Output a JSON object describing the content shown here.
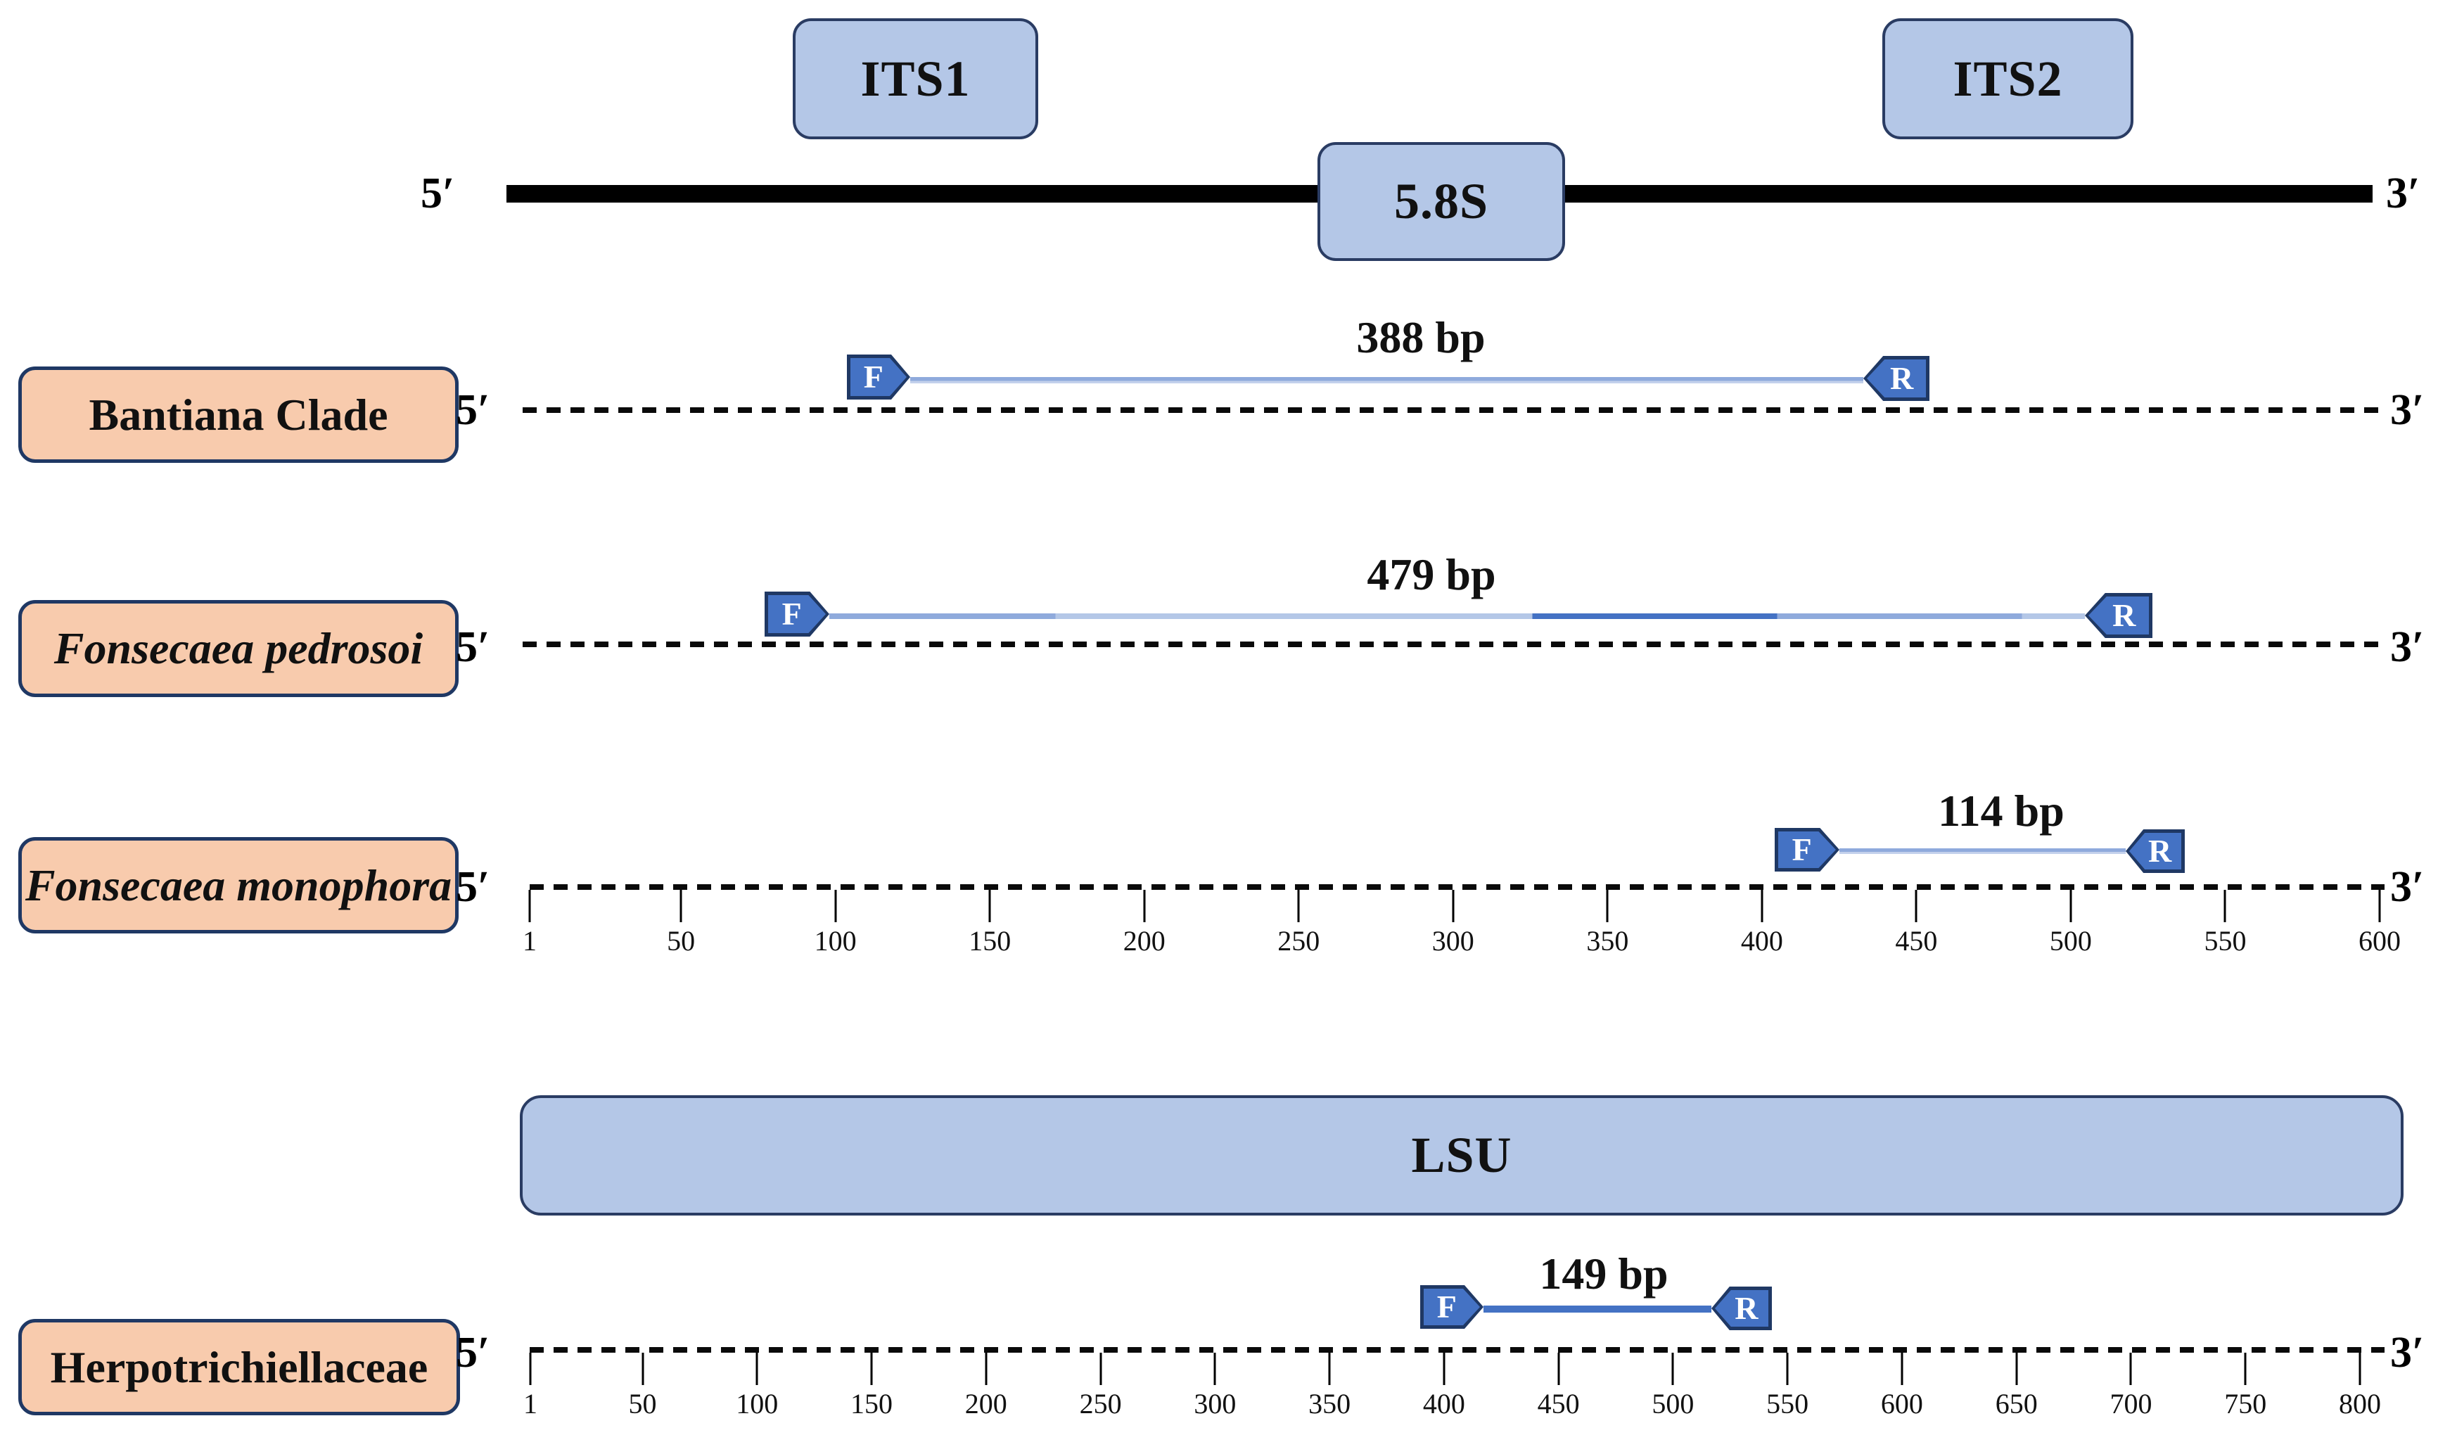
{
  "figure": {
    "title_region_map": {
      "five_prime": "5′",
      "three_prime": "3′",
      "its1_label": "ITS1",
      "s58_label": "5.8S",
      "its2_label": "ITS2"
    },
    "lsu_label": "LSU",
    "rows": [
      {
        "name": "Bantiana Clade",
        "italic": false,
        "five_prime": "5′",
        "three_prime": "3′",
        "amplicon_size": "388 bp",
        "forward_label": "F",
        "reverse_label": "R",
        "ruler": null
      },
      {
        "name": "Fonsecaea pedrosoi",
        "italic": true,
        "five_prime": "5′",
        "three_prime": "3′",
        "amplicon_size": "479 bp",
        "forward_label": "F",
        "reverse_label": "R",
        "ruler": null
      },
      {
        "name": "Fonsecaea monophora",
        "italic": true,
        "five_prime": "5′",
        "three_prime": "3′",
        "amplicon_size": "114 bp",
        "forward_label": "F",
        "reverse_label": "R",
        "ruler": {
          "min": 1,
          "max": 600,
          "ticks": [
            1,
            50,
            100,
            150,
            200,
            250,
            300,
            350,
            400,
            450,
            500,
            550,
            600
          ]
        }
      },
      {
        "name": "Herpotrichiellaceae",
        "italic": false,
        "five_prime": "5′",
        "three_prime": "3′",
        "amplicon_size": "149 bp",
        "forward_label": "F",
        "reverse_label": "R",
        "ruler": {
          "min": 1,
          "max": 800,
          "ticks": [
            1,
            50,
            100,
            150,
            200,
            250,
            300,
            350,
            400,
            450,
            500,
            550,
            600,
            650,
            700,
            750,
            800
          ]
        }
      }
    ],
    "colors": {
      "region_fill": "#B4C7E7",
      "species_fill": "#F8CBAD",
      "primer_fill": "#4472C4",
      "dark_border": "#1F3864",
      "amplicon_line_light": "#8FAADC",
      "strand_black": "#000000"
    }
  }
}
